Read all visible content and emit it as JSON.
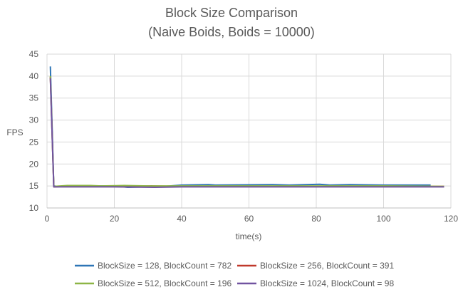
{
  "chart_data": {
    "type": "line",
    "title": "Block Size Comparison",
    "subtitle": "(Naive Boids, Boids = 10000)",
    "xlabel": "time(s)",
    "ylabel": "FPS",
    "xlim": [
      0,
      120
    ],
    "ylim": [
      10,
      45
    ],
    "xticks": [
      0,
      20,
      40,
      60,
      80,
      100,
      120
    ],
    "yticks": [
      10,
      15,
      20,
      25,
      30,
      35,
      40,
      45
    ],
    "grid": "horizontal and vertical",
    "legend_position": "bottom",
    "series": [
      {
        "name": "BlockSize = 128, BlockCount = 782",
        "color": "#2e75b6",
        "points": [
          [
            1,
            42.2
          ],
          [
            2,
            15
          ],
          [
            3,
            14.9
          ],
          [
            6,
            15
          ],
          [
            10,
            14.9
          ],
          [
            14,
            15
          ],
          [
            20,
            15
          ],
          [
            24,
            14.7
          ],
          [
            29,
            14.8
          ],
          [
            31,
            15
          ],
          [
            33,
            14.8
          ],
          [
            40,
            15.2
          ],
          [
            48,
            15.3
          ],
          [
            50,
            15.2
          ],
          [
            67,
            15.3
          ],
          [
            72,
            15.2
          ],
          [
            81,
            15.4
          ],
          [
            84,
            15.2
          ],
          [
            90,
            15.3
          ],
          [
            100,
            15.2
          ],
          [
            114,
            15.2
          ]
        ]
      },
      {
        "name": "BlockSize = 256, BlockCount = 391",
        "color": "#c0392b",
        "points": [
          [
            1,
            39.8
          ],
          [
            2,
            14.8
          ],
          [
            5,
            14.9
          ],
          [
            10,
            14.9
          ],
          [
            20,
            14.9
          ],
          [
            31,
            15
          ],
          [
            40,
            14.9
          ],
          [
            60,
            14.9
          ],
          [
            80,
            14.9
          ],
          [
            100,
            14.9
          ],
          [
            118,
            14.9
          ]
        ]
      },
      {
        "name": "BlockSize = 512, BlockCount = 196",
        "color": "#8db545",
        "points": [
          [
            1,
            40
          ],
          [
            2,
            14.9
          ],
          [
            6,
            15.1
          ],
          [
            10,
            15.1
          ],
          [
            13,
            15.1
          ],
          [
            16,
            15
          ],
          [
            23,
            15.1
          ],
          [
            30,
            15
          ],
          [
            40,
            15
          ],
          [
            60,
            15
          ],
          [
            80,
            15
          ],
          [
            100,
            15
          ],
          [
            118,
            14.9
          ]
        ]
      },
      {
        "name": "BlockSize = 1024, BlockCount = 98",
        "color": "#7153a0",
        "points": [
          [
            1,
            39.5
          ],
          [
            2,
            14.8
          ],
          [
            4,
            14.8
          ],
          [
            8,
            14.8
          ],
          [
            20,
            14.8
          ],
          [
            32,
            14.7
          ],
          [
            40,
            14.8
          ],
          [
            60,
            14.8
          ],
          [
            80,
            14.8
          ],
          [
            100,
            14.8
          ],
          [
            118,
            14.8
          ]
        ]
      }
    ]
  }
}
